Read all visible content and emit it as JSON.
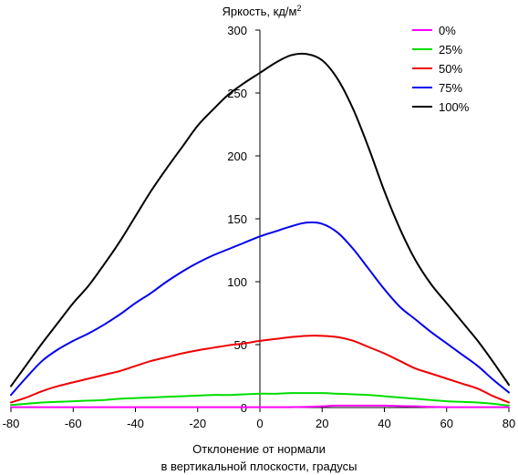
{
  "chart_data": {
    "type": "line",
    "title": "",
    "ylabel": "Яркость, кд/м",
    "ylabel_sup": "2",
    "xlabel_line1": "Отклонение от нормали",
    "xlabel_line2": "в вертикальной плоскости, градусы",
    "xlim": [
      -80,
      80
    ],
    "ylim": [
      0,
      300
    ],
    "xticks": [
      -80,
      -60,
      -40,
      -20,
      0,
      20,
      40,
      60,
      80
    ],
    "yticks": [
      0,
      50,
      100,
      150,
      200,
      250,
      300
    ],
    "legend_position": "top-right",
    "grid": false,
    "x": [
      -80,
      -75,
      -70,
      -65,
      -60,
      -55,
      -50,
      -45,
      -40,
      -35,
      -30,
      -25,
      -20,
      -15,
      -10,
      -5,
      0,
      5,
      10,
      15,
      20,
      25,
      30,
      35,
      40,
      45,
      50,
      55,
      60,
      65,
      70,
      75,
      80
    ],
    "series": [
      {
        "name": "0%",
        "color": "#ff00ff",
        "values": [
          0.3,
          0.3,
          0.3,
          0.3,
          0.3,
          0.3,
          0.3,
          0.3,
          0.3,
          0.3,
          0.3,
          0.3,
          0.3,
          0.3,
          0.3,
          0.3,
          0.3,
          0.3,
          0.3,
          0.5,
          1,
          1.5,
          1.5,
          1.5,
          1.5,
          1.2,
          1,
          0.5,
          0.3,
          0.3,
          0.3,
          0.3,
          0.3
        ]
      },
      {
        "name": "25%",
        "color": "#00dd00",
        "values": [
          2,
          3,
          4,
          4.5,
          5,
          5.5,
          6,
          7,
          7.5,
          8,
          8.5,
          9,
          9.5,
          10,
          10,
          10.5,
          11,
          11,
          11.5,
          11.5,
          11.5,
          11,
          10.5,
          10,
          9,
          8,
          7,
          6,
          5,
          4.5,
          4,
          3,
          1.5
        ]
      },
      {
        "name": "50%",
        "color": "#ee0000",
        "values": [
          4,
          8,
          13,
          17,
          20,
          23,
          26,
          29,
          33,
          37,
          40,
          43,
          45.5,
          47.5,
          49.5,
          51,
          53,
          54.5,
          56,
          57,
          57,
          56,
          53,
          48,
          43,
          37,
          31,
          27,
          23,
          19,
          15,
          9,
          4
        ]
      },
      {
        "name": "75%",
        "color": "#0000ee",
        "values": [
          10,
          24,
          37,
          46,
          53,
          59,
          66,
          74,
          83,
          91,
          100,
          108,
          115,
          121,
          126,
          131,
          136,
          140,
          144,
          147,
          146,
          139,
          126,
          110,
          94,
          80,
          70,
          60,
          51,
          42,
          33,
          22,
          12
        ]
      },
      {
        "name": "100%",
        "color": "#000000",
        "values": [
          17,
          34,
          51,
          67,
          83,
          97,
          114,
          132,
          152,
          172,
          190,
          207,
          224,
          237,
          249,
          258,
          266,
          274,
          280,
          281,
          276,
          261,
          237,
          206,
          172,
          142,
          117,
          98,
          83,
          68,
          53,
          36,
          18
        ]
      }
    ]
  }
}
